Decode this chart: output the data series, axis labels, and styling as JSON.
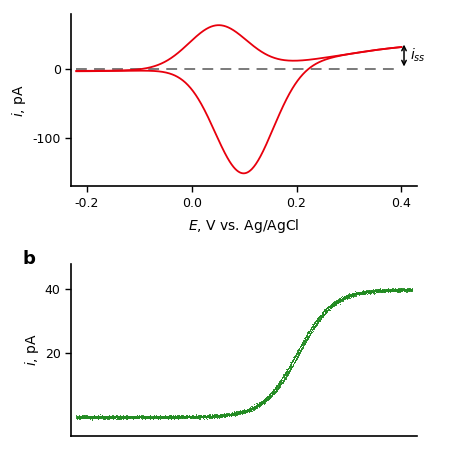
{
  "panel_a": {
    "xlim": [
      -0.23,
      0.43
    ],
    "ylim": [
      -170,
      80
    ],
    "yticks": [
      0,
      -100
    ],
    "xticks": [
      -0.2,
      0.0,
      0.2,
      0.4
    ],
    "xlabel": "E, V vs. Ag/AgCl",
    "ylabel": "i, pA",
    "cv_color": "#e8000d",
    "dashed_color": "#707070",
    "iss": 40,
    "E0": 0.17,
    "anodic_peak_E": 0.05,
    "anodic_peak_i": 62,
    "cathodic_peak_E": 0.1,
    "cathodic_peak_i": -155
  },
  "panel_b": {
    "xlim": [
      -0.23,
      0.43
    ],
    "ylim": [
      -6,
      48
    ],
    "yticks": [
      20,
      40
    ],
    "ylabel": "i, pA",
    "ss_color": "#228B22",
    "E0": 0.2,
    "iss": 40,
    "label": "b"
  }
}
